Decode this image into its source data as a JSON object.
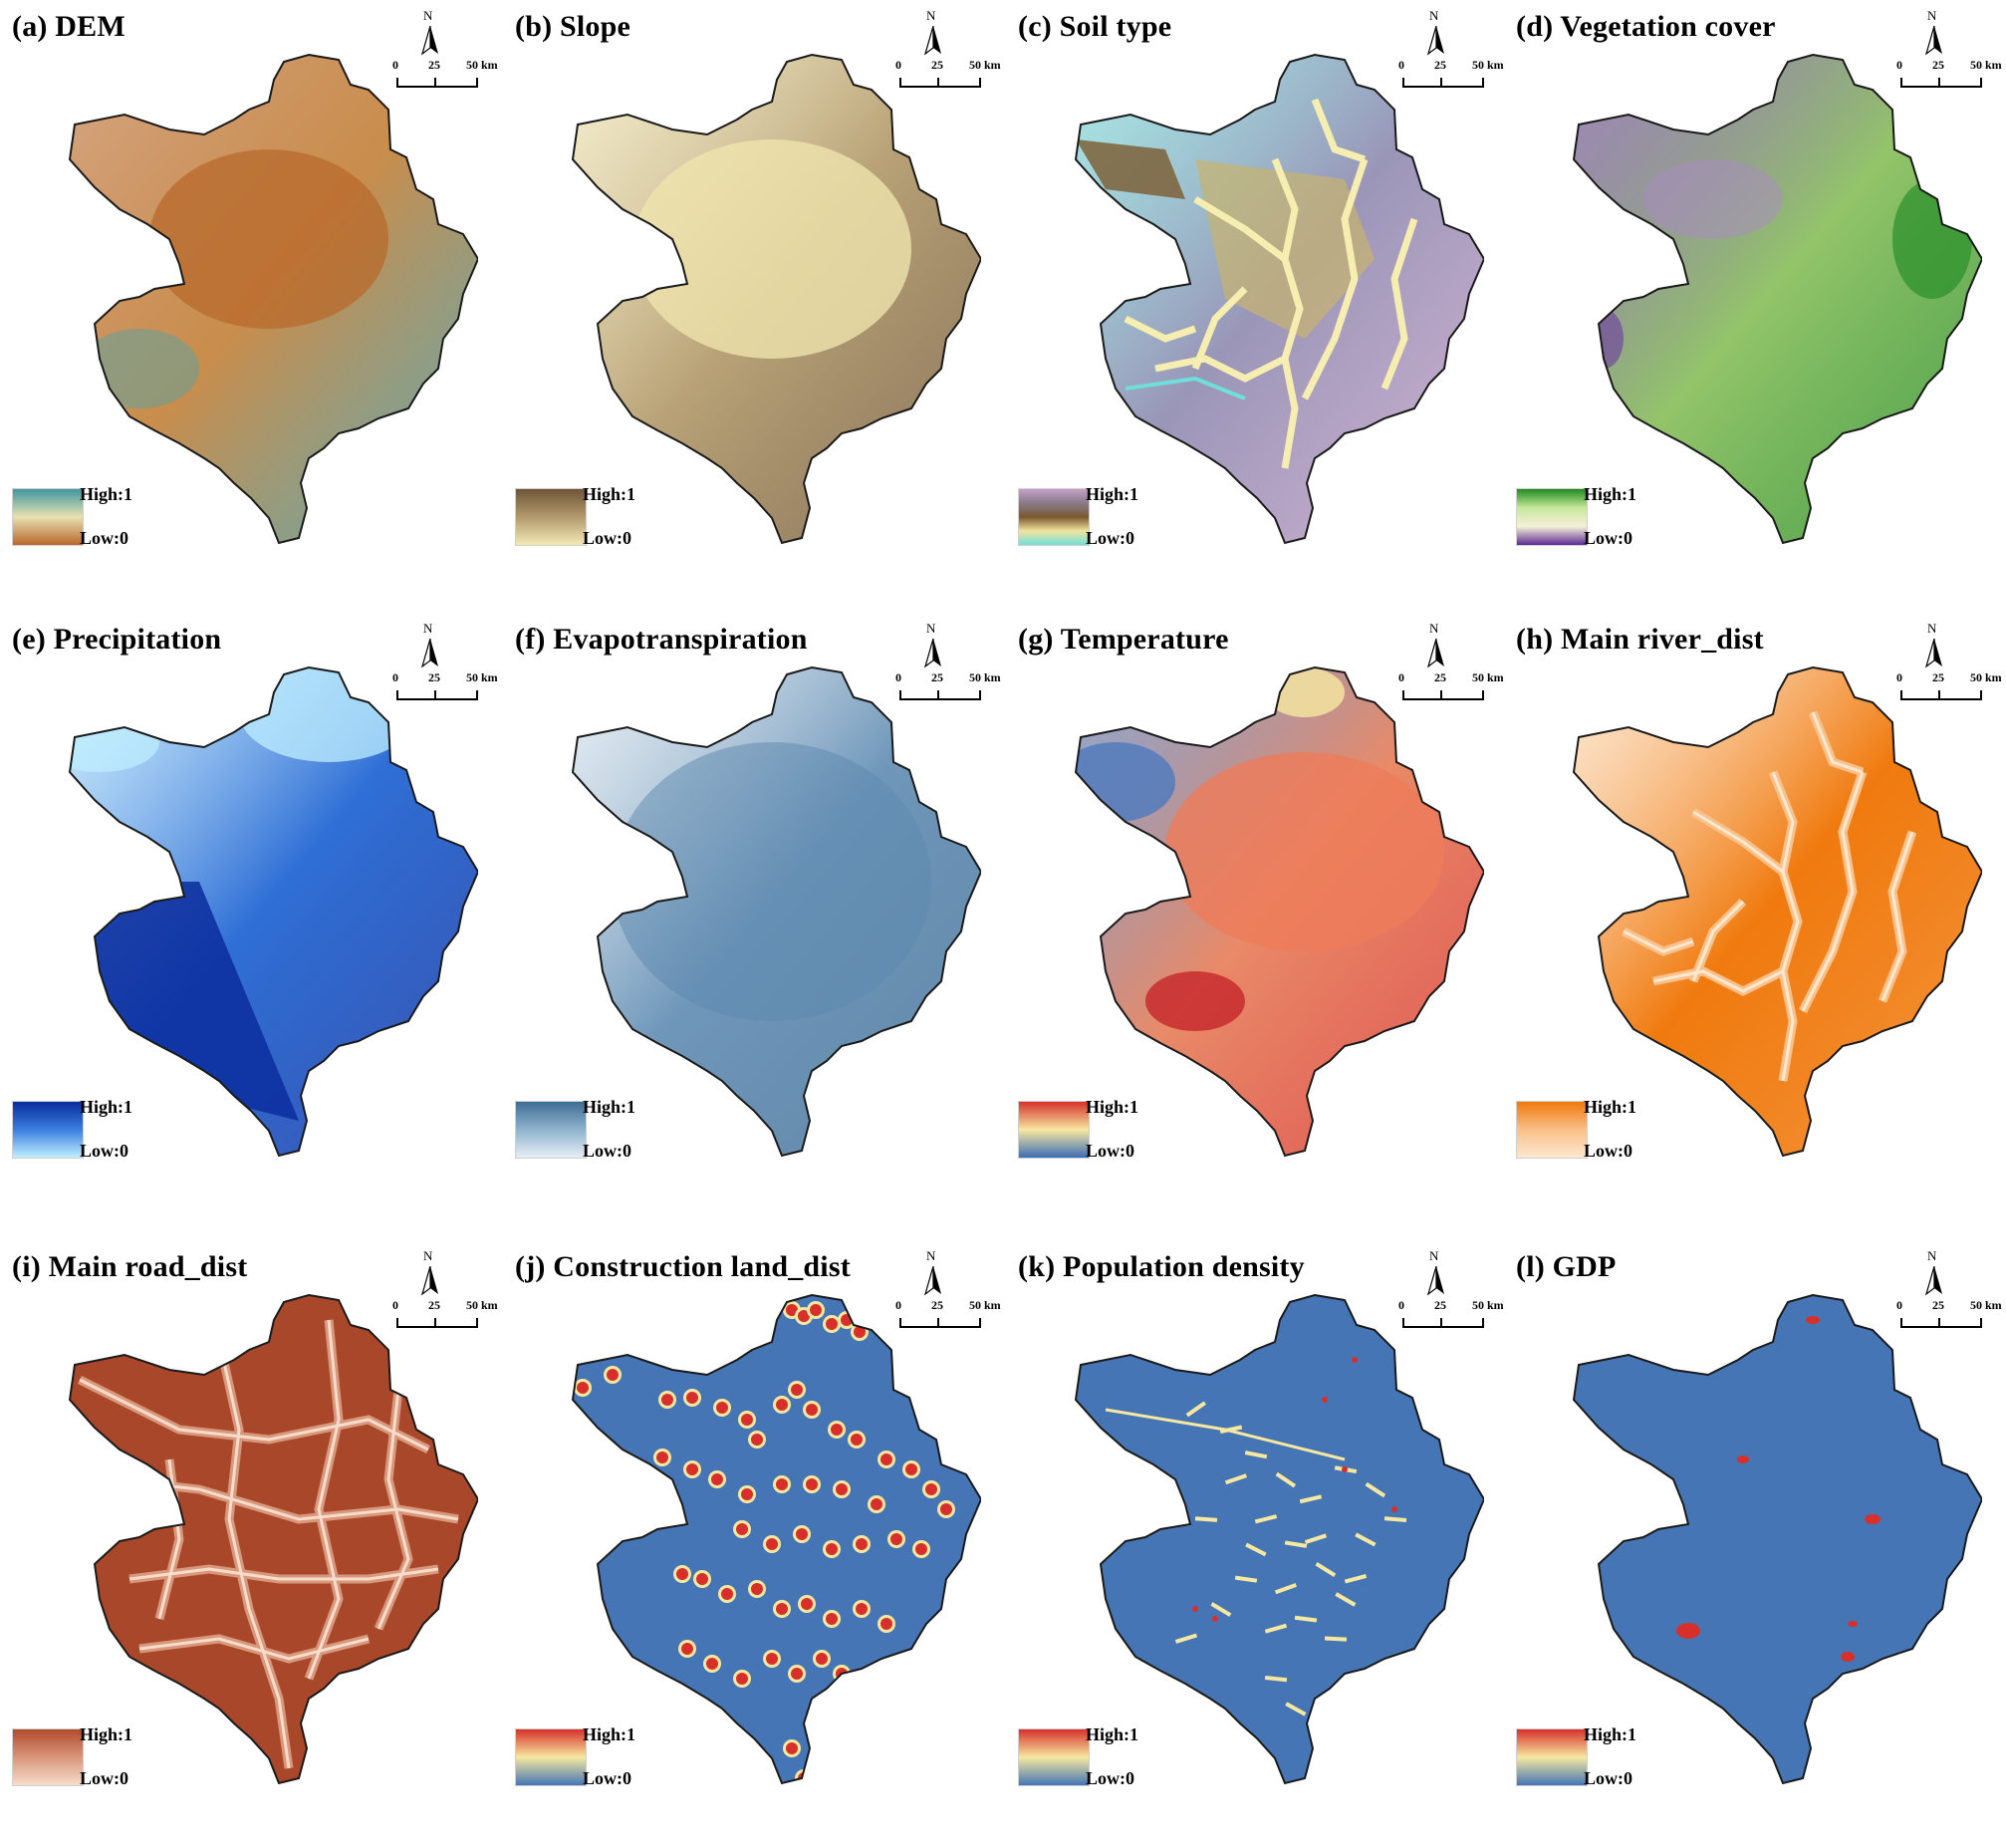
{
  "scale": {
    "north": "N",
    "t0": "0",
    "t1": "25",
    "t2": "50 km"
  },
  "legend": {
    "high": "High:1",
    "low": "Low:0"
  },
  "panels": [
    {
      "title": "(a) DEM",
      "fill": "#c98d4c",
      "grad": [
        "#3f97a0",
        "#e8e0b0",
        "#b8682c"
      ]
    },
    {
      "title": "(b) Slope",
      "fill": "#b9a277",
      "grad": [
        "#6e5536",
        "#b39a6e",
        "#f3eab5"
      ]
    },
    {
      "title": "(c) Soil type",
      "fill": "#9a96b8",
      "grad": [
        "#c6a0c6",
        "#8a7a8a",
        "#7a5a2e",
        "#f2e3a0",
        "#6fe0d8"
      ]
    },
    {
      "title": "(d) Vegetation cover",
      "fill": "#93c46a",
      "grad": [
        "#1f8a1f",
        "#c7e79a",
        "#f5f0d8",
        "#5b2a92"
      ]
    },
    {
      "title": "(e) Precipitation",
      "fill": "#2f6fd6",
      "grad": [
        "#0a2d9e",
        "#3b7fe0",
        "#bfefff"
      ]
    },
    {
      "title": "(f) Evapotranspiration",
      "fill": "#6f97ba",
      "grad": [
        "#3e6d94",
        "#8fb2cd",
        "#e6eef3"
      ]
    },
    {
      "title": "(g) Temperature",
      "fill": "#e98a68",
      "grad": [
        "#d7302b",
        "#f7e8a0",
        "#3c6db6"
      ]
    },
    {
      "title": "(h) Main river_dist",
      "fill": "#f07a0e",
      "grad": [
        "#f07a0e",
        "#f9c089",
        "#fde8d0"
      ]
    },
    {
      "title": "(i) Main road_dist",
      "fill": "#a9472a",
      "grad": [
        "#b04b2b",
        "#d9977c",
        "#f6dccb"
      ]
    },
    {
      "title": "(j) Construction land_dist",
      "fill": "#4575b4",
      "grad": [
        "#d7302b",
        "#f6e8a0",
        "#4575b4"
      ]
    },
    {
      "title": "(k) Population density",
      "fill": "#4575b4",
      "grad": [
        "#d7302b",
        "#f6e8a0",
        "#4575b4"
      ]
    },
    {
      "title": "(l) GDP",
      "fill": "#4575b4",
      "grad": [
        "#d7302b",
        "#f6e8a0",
        "#4575b4"
      ]
    }
  ]
}
